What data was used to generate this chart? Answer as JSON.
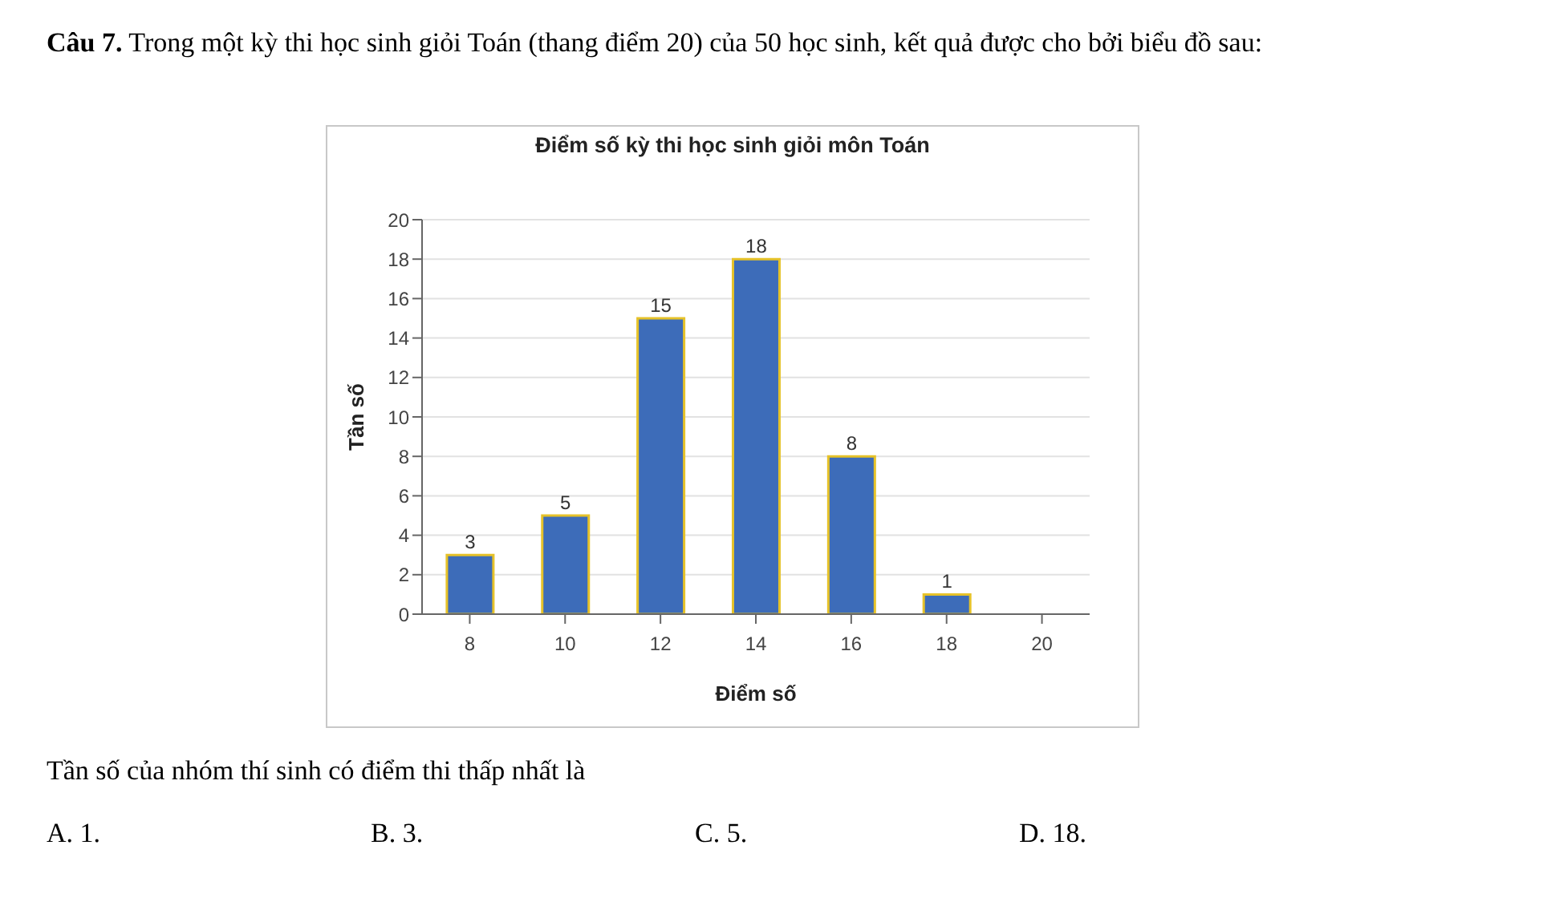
{
  "chart_data": {
    "type": "bar",
    "title": "Điểm số kỳ thi học sinh giỏi môn Toán",
    "xlabel": "Điểm số",
    "ylabel": "Tần số",
    "categories": [
      "8",
      "10",
      "12",
      "14",
      "16",
      "18",
      "20"
    ],
    "values": [
      3,
      5,
      15,
      18,
      8,
      1,
      null
    ],
    "color": "#3d6cb9",
    "ylim": [
      0,
      20
    ],
    "yticks": [
      0,
      2,
      4,
      6,
      8,
      10,
      12,
      14,
      16,
      18,
      20
    ],
    "grid": "y",
    "data_labels": true,
    "legend": false,
    "annotations": [
      "Câu 7. Trong một kỳ thi học sinh giỏi Toán (thang điểm 20) của 50 học sinh, kết quả được cho bởi biểu đồ sau:",
      "Tần số của nhóm thí sinh có điểm thi thấp nhất là",
      "A. 1.",
      "B. 3.",
      "C. 5.",
      "D. 18."
    ]
  }
}
